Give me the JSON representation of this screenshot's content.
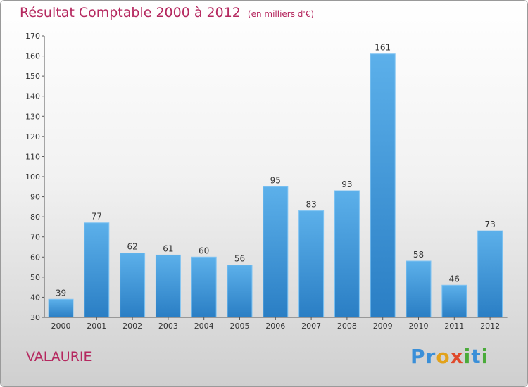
{
  "colors": {
    "title": "#b5285f",
    "bar_top": "#5cb0ea",
    "bar_bottom": "#2a7ec4",
    "axis": "#555555",
    "text": "#333333"
  },
  "chart_data": {
    "type": "bar",
    "title": "Résultat Comptable 2000 à 2012",
    "subtitle": "(en milliers d'€)",
    "xlabel": "",
    "ylabel": "",
    "categories": [
      "2000",
      "2001",
      "2002",
      "2003",
      "2004",
      "2005",
      "2006",
      "2007",
      "2008",
      "2009",
      "2010",
      "2011",
      "2012"
    ],
    "values": [
      39,
      77,
      62,
      61,
      60,
      56,
      95,
      83,
      93,
      161,
      58,
      46,
      73
    ],
    "ylim": [
      30,
      170
    ],
    "yticks": [
      30,
      40,
      50,
      60,
      70,
      80,
      90,
      100,
      110,
      120,
      130,
      140,
      150,
      160,
      170
    ],
    "grid": false,
    "legend": "none"
  },
  "footer": {
    "commune": "VALAURIE",
    "logo_letters": [
      {
        "char": "P",
        "color": "#3a8fd8"
      },
      {
        "char": "r",
        "color": "#3a8fd8"
      },
      {
        "char": "o",
        "color": "#e2a21b"
      },
      {
        "char": "x",
        "color": "#e04a2b"
      },
      {
        "char": "i",
        "color": "#4aab3a"
      },
      {
        "char": "t",
        "color": "#3a8fd8"
      },
      {
        "char": "i",
        "color": "#4aab3a"
      }
    ]
  }
}
